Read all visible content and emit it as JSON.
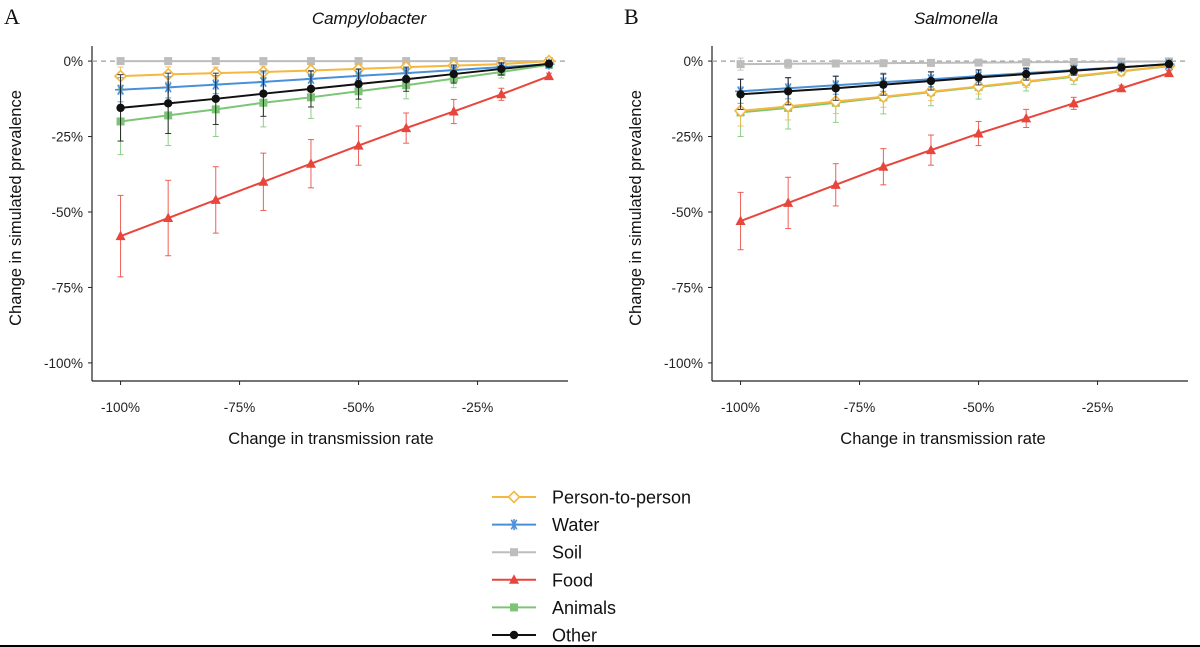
{
  "figure": {
    "legend": [
      {
        "key": "p2p",
        "label": "Person-to-person",
        "color": "#f5b83d",
        "marker": "diamond-open"
      },
      {
        "key": "water",
        "label": "Water",
        "color": "#4a90d9",
        "marker": "asterisk"
      },
      {
        "key": "soil",
        "label": "Soil",
        "color": "#bdbdbd",
        "marker": "square"
      },
      {
        "key": "food",
        "label": "Food",
        "color": "#e8453c",
        "marker": "triangle"
      },
      {
        "key": "animals",
        "label": "Animals",
        "color": "#7cc576",
        "marker": "square"
      },
      {
        "key": "other",
        "label": "Other",
        "color": "#111111",
        "marker": "circle"
      }
    ]
  },
  "chart_data": [
    {
      "panel_label": "A",
      "type": "line",
      "title": "Campylobacter",
      "xlabel": "Change in transmission rate",
      "ylabel": "Change in simulated prevalence",
      "x_ticks": [
        {
          "v": -100,
          "label": "-100%"
        },
        {
          "v": -75,
          "label": "-75%"
        },
        {
          "v": -50,
          "label": "-50%"
        },
        {
          "v": -25,
          "label": "-25%"
        }
      ],
      "y_ticks": [
        {
          "v": 0,
          "label": "0%"
        },
        {
          "v": -25,
          "label": "-25%"
        },
        {
          "v": -50,
          "label": "-50%"
        },
        {
          "v": -75,
          "label": "-75%"
        },
        {
          "v": -100,
          "label": "-100%"
        }
      ],
      "xlim": [
        -106,
        -6
      ],
      "ylim": [
        -106,
        5
      ],
      "x": [
        -100,
        -90,
        -80,
        -70,
        -60,
        -50,
        -40,
        -30,
        -20,
        -10
      ],
      "series": [
        {
          "key": "soil",
          "name": "Soil",
          "values": [
            0,
            0,
            0,
            0,
            0,
            0,
            0,
            0,
            0,
            0
          ],
          "err": [
            0,
            0,
            0,
            0,
            0,
            0,
            0,
            0,
            0,
            0
          ]
        },
        {
          "key": "animals",
          "name": "Animals",
          "values": [
            -20,
            -18,
            -16,
            -13.8,
            -12,
            -10,
            -8,
            -5.8,
            -3.6,
            -1.2
          ],
          "err": [
            11,
            10,
            9,
            8,
            7,
            5.5,
            4.5,
            3,
            2,
            1
          ]
        },
        {
          "key": "p2p",
          "name": "Person-to-person",
          "values": [
            -5,
            -4.4,
            -4,
            -3.6,
            -3.1,
            -2.6,
            -2,
            -1.5,
            -1,
            0
          ],
          "err": [
            3,
            2.5,
            2,
            2,
            1.8,
            1.5,
            1,
            0.8,
            0.5,
            0.3
          ]
        },
        {
          "key": "water",
          "name": "Water",
          "values": [
            -9.5,
            -8.7,
            -7.8,
            -6.9,
            -5.9,
            -4.9,
            -4,
            -3,
            -2,
            -1
          ],
          "err": [
            4,
            3.5,
            3,
            3,
            2.5,
            2,
            1.5,
            1,
            1,
            0.5
          ]
        },
        {
          "key": "other",
          "name": "Other",
          "values": [
            -15.5,
            -14,
            -12.5,
            -10.8,
            -9.2,
            -7.6,
            -6,
            -4.3,
            -2.6,
            -0.9
          ],
          "err": [
            11,
            10,
            8.5,
            7.5,
            6,
            5,
            4,
            3,
            2,
            1
          ]
        },
        {
          "key": "food",
          "name": "Food",
          "values": [
            -58,
            -52,
            -46,
            -40,
            -34,
            -28,
            -22.2,
            -16.7,
            -11,
            -5
          ],
          "err": [
            13.5,
            12.5,
            11,
            9.5,
            8,
            6.5,
            5,
            4,
            2,
            1
          ]
        }
      ]
    },
    {
      "panel_label": "B",
      "type": "line",
      "title": "Salmonella",
      "xlabel": "Change in transmission rate",
      "ylabel": "Change in simulated prevalence",
      "x_ticks": [
        {
          "v": -100,
          "label": "-100%"
        },
        {
          "v": -75,
          "label": "-75%"
        },
        {
          "v": -50,
          "label": "-50%"
        },
        {
          "v": -25,
          "label": "-25%"
        }
      ],
      "y_ticks": [
        {
          "v": 0,
          "label": "0%"
        },
        {
          "v": -25,
          "label": "-25%"
        },
        {
          "v": -50,
          "label": "-50%"
        },
        {
          "v": -75,
          "label": "-75%"
        },
        {
          "v": -100,
          "label": "-100%"
        }
      ],
      "xlim": [
        -106,
        -6
      ],
      "ylim": [
        -106,
        5
      ],
      "x": [
        -100,
        -90,
        -80,
        -70,
        -60,
        -50,
        -40,
        -30,
        -20,
        -10
      ],
      "series": [
        {
          "key": "soil",
          "name": "Soil",
          "values": [
            -1,
            -0.9,
            -0.8,
            -0.7,
            -0.6,
            -0.5,
            -0.4,
            -0.3,
            -0.2,
            -0.1
          ],
          "err": [
            2,
            1.5,
            1,
            1,
            0.8,
            0.6,
            0.5,
            0.4,
            0.3,
            0.2
          ]
        },
        {
          "key": "animals",
          "name": "Animals",
          "values": [
            -17,
            -15.5,
            -13.8,
            -12,
            -10.3,
            -8.6,
            -6.9,
            -5.2,
            -3.4,
            -1.7
          ],
          "err": [
            8,
            7,
            6.5,
            5.5,
            4.5,
            4,
            3,
            2.5,
            1.5,
            0.8
          ]
        },
        {
          "key": "p2p",
          "name": "Person-to-person",
          "values": [
            -16.5,
            -15,
            -13.4,
            -11.8,
            -10.1,
            -8.4,
            -6.7,
            -5,
            -3.3,
            -1.6
          ],
          "err": [
            5,
            4.5,
            4,
            3.5,
            3,
            2.5,
            2,
            1.5,
            1,
            0.5
          ]
        },
        {
          "key": "water",
          "name": "Water",
          "values": [
            -10,
            -9,
            -8,
            -7,
            -6,
            -5,
            -4,
            -3,
            -2,
            -1
          ],
          "err": [
            4,
            3.5,
            3,
            3,
            2.5,
            2,
            1.5,
            1,
            1,
            0.5
          ]
        },
        {
          "key": "other",
          "name": "Other",
          "values": [
            -11,
            -10,
            -9,
            -7.8,
            -6.6,
            -5.4,
            -4.3,
            -3.2,
            -2.1,
            -1
          ],
          "err": [
            5,
            4.5,
            4,
            3.5,
            3,
            2.5,
            2,
            1.5,
            1,
            0.5
          ]
        },
        {
          "key": "food",
          "name": "Food",
          "values": [
            -53,
            -47,
            -41,
            -35,
            -29.5,
            -24,
            -19,
            -14,
            -9,
            -4
          ],
          "err": [
            9.5,
            8.5,
            7,
            6,
            5,
            4,
            3,
            2,
            1,
            0.8
          ]
        }
      ]
    }
  ]
}
